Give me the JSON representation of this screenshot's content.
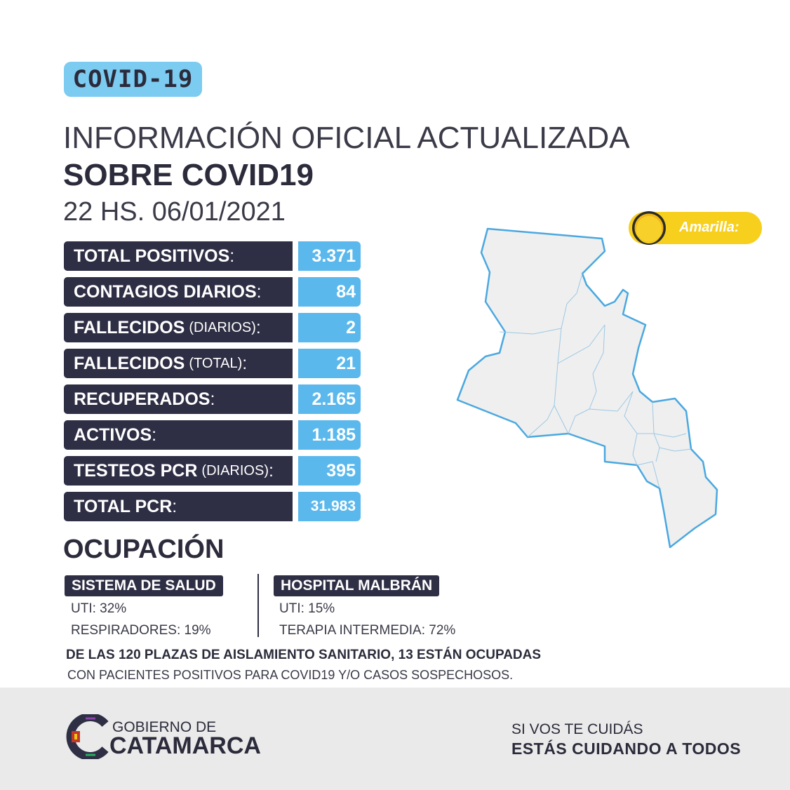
{
  "badge": "COVID-19",
  "title_line1": "INFORMACIÓN OFICIAL ACTUALIZADA",
  "title_line2": "SOBRE COVID19",
  "datetime": "22 HS. 06/01/2021",
  "stats": [
    {
      "label": "TOTAL POSITIVOS",
      "sub": "",
      "value": "3.371"
    },
    {
      "label": "CONTAGIOS DIARIOS",
      "sub": "",
      "value": "84"
    },
    {
      "label": "FALLECIDOS",
      "sub": "(DIARIOS)",
      "value": "2"
    },
    {
      "label": "FALLECIDOS",
      "sub": "(TOTAL)",
      "value": "21"
    },
    {
      "label": "RECUPERADOS",
      "sub": "",
      "value": "2.165"
    },
    {
      "label": "ACTIVOS",
      "sub": "",
      "value": "1.185"
    },
    {
      "label": "TESTEOS PCR",
      "sub": "(DIARIOS)",
      "value": "395"
    },
    {
      "label": "TOTAL PCR",
      "sub": "",
      "value": "31.983"
    }
  ],
  "colon": ":",
  "occupancy": {
    "heading": "OCUPACIÓN",
    "health_system": {
      "title": "SISTEMA DE SALUD",
      "line1": "UTI: 32%",
      "line2": "RESPIRADORES: 19%"
    },
    "hospital": {
      "title": "HOSPITAL MALBRÁN",
      "line1": "UTI: 15%",
      "line2": "TERAPIA INTERMEDIA: 72%"
    }
  },
  "note_bold": "DE LAS 120 PLAZAS DE AISLAMIENTO SANITARIO, 13 ESTÁN OCUPADAS",
  "note_regular": "CON PACIENTES POSITIVOS PARA COVID19 Y/O CASOS SOSPECHOSOS.",
  "status": {
    "label": "Amarilla:",
    "color": "#f7cf1d"
  },
  "footer": {
    "gov_line1": "GOBIERNO DE",
    "gov_line2": "CATAMARCA",
    "slogan_line1": "SI VOS TE CUIDÁS",
    "slogan_line2": "ESTÁS CUIDANDO A TODOS"
  },
  "colors": {
    "dark": "#2e2e45",
    "accent": "#5bb8ec",
    "badge": "#7ccbf1",
    "map_stroke": "#4aa8e0"
  }
}
